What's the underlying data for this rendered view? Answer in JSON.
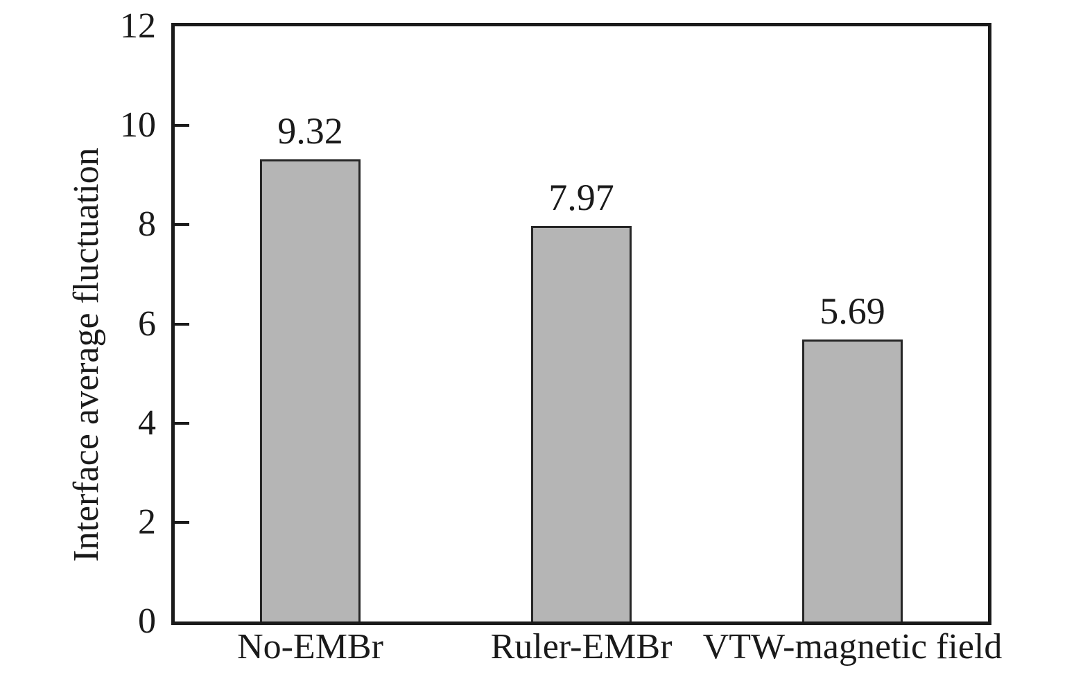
{
  "chart_data": {
    "type": "bar",
    "categories": [
      "No-EMBr",
      "Ruler-EMBr",
      "VTW-magnetic field"
    ],
    "values": [
      9.32,
      7.97,
      5.69
    ],
    "value_labels": [
      "9.32",
      "7.97",
      "5.69"
    ],
    "title": "",
    "xlabel": "",
    "ylabel": "Interface average fluctuation",
    "ylim": [
      0,
      12
    ],
    "yticks": [
      0,
      2,
      4,
      6,
      8,
      10,
      12
    ],
    "ytick_labels": [
      "0",
      "2",
      "4",
      "6",
      "8",
      "10",
      "12"
    ],
    "grid": false,
    "legend_position": "none",
    "bar_fill_color": "#b5b5b5",
    "bar_border_color": "#262626",
    "axis_color": "#1a1a1a",
    "text_color": "#1a1a1a",
    "background_color": "#ffffff"
  }
}
